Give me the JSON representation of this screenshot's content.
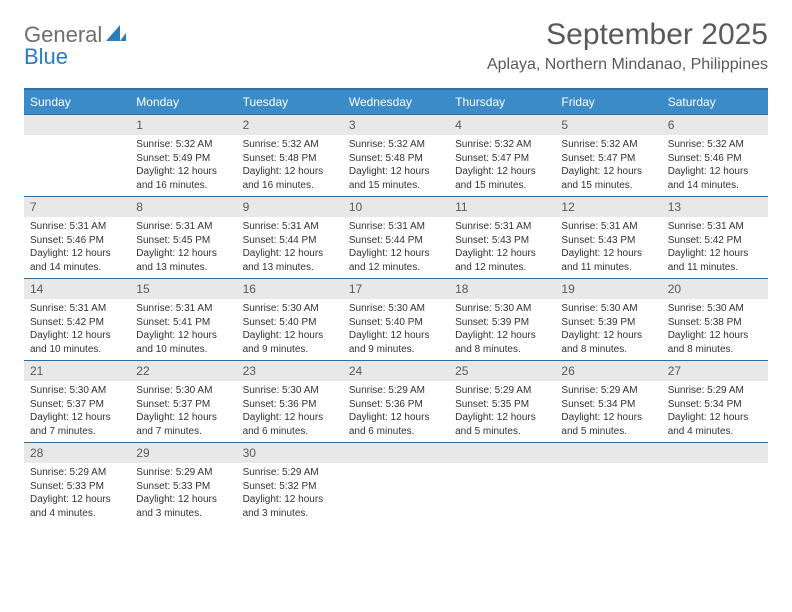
{
  "logo": {
    "text_general": "General",
    "text_blue": "Blue",
    "icon_fill": "#2b7bbf"
  },
  "title": {
    "month": "September 2025",
    "location": "Aplaya, Northern Mindanao, Philippines"
  },
  "colors": {
    "header_bg": "#3b8bc9",
    "header_text": "#ffffff",
    "daynum_bg": "#e8e8e8",
    "daynum_text": "#5a5a5a",
    "body_text": "#333333",
    "border": "#2b6fa3"
  },
  "weekdays": [
    "Sunday",
    "Monday",
    "Tuesday",
    "Wednesday",
    "Thursday",
    "Friday",
    "Saturday"
  ],
  "leading_blanks": 1,
  "days": [
    {
      "n": "1",
      "sunrise": "Sunrise: 5:32 AM",
      "sunset": "Sunset: 5:49 PM",
      "daylight": "Daylight: 12 hours and 16 minutes."
    },
    {
      "n": "2",
      "sunrise": "Sunrise: 5:32 AM",
      "sunset": "Sunset: 5:48 PM",
      "daylight": "Daylight: 12 hours and 16 minutes."
    },
    {
      "n": "3",
      "sunrise": "Sunrise: 5:32 AM",
      "sunset": "Sunset: 5:48 PM",
      "daylight": "Daylight: 12 hours and 15 minutes."
    },
    {
      "n": "4",
      "sunrise": "Sunrise: 5:32 AM",
      "sunset": "Sunset: 5:47 PM",
      "daylight": "Daylight: 12 hours and 15 minutes."
    },
    {
      "n": "5",
      "sunrise": "Sunrise: 5:32 AM",
      "sunset": "Sunset: 5:47 PM",
      "daylight": "Daylight: 12 hours and 15 minutes."
    },
    {
      "n": "6",
      "sunrise": "Sunrise: 5:32 AM",
      "sunset": "Sunset: 5:46 PM",
      "daylight": "Daylight: 12 hours and 14 minutes."
    },
    {
      "n": "7",
      "sunrise": "Sunrise: 5:31 AM",
      "sunset": "Sunset: 5:46 PM",
      "daylight": "Daylight: 12 hours and 14 minutes."
    },
    {
      "n": "8",
      "sunrise": "Sunrise: 5:31 AM",
      "sunset": "Sunset: 5:45 PM",
      "daylight": "Daylight: 12 hours and 13 minutes."
    },
    {
      "n": "9",
      "sunrise": "Sunrise: 5:31 AM",
      "sunset": "Sunset: 5:44 PM",
      "daylight": "Daylight: 12 hours and 13 minutes."
    },
    {
      "n": "10",
      "sunrise": "Sunrise: 5:31 AM",
      "sunset": "Sunset: 5:44 PM",
      "daylight": "Daylight: 12 hours and 12 minutes."
    },
    {
      "n": "11",
      "sunrise": "Sunrise: 5:31 AM",
      "sunset": "Sunset: 5:43 PM",
      "daylight": "Daylight: 12 hours and 12 minutes."
    },
    {
      "n": "12",
      "sunrise": "Sunrise: 5:31 AM",
      "sunset": "Sunset: 5:43 PM",
      "daylight": "Daylight: 12 hours and 11 minutes."
    },
    {
      "n": "13",
      "sunrise": "Sunrise: 5:31 AM",
      "sunset": "Sunset: 5:42 PM",
      "daylight": "Daylight: 12 hours and 11 minutes."
    },
    {
      "n": "14",
      "sunrise": "Sunrise: 5:31 AM",
      "sunset": "Sunset: 5:42 PM",
      "daylight": "Daylight: 12 hours and 10 minutes."
    },
    {
      "n": "15",
      "sunrise": "Sunrise: 5:31 AM",
      "sunset": "Sunset: 5:41 PM",
      "daylight": "Daylight: 12 hours and 10 minutes."
    },
    {
      "n": "16",
      "sunrise": "Sunrise: 5:30 AM",
      "sunset": "Sunset: 5:40 PM",
      "daylight": "Daylight: 12 hours and 9 minutes."
    },
    {
      "n": "17",
      "sunrise": "Sunrise: 5:30 AM",
      "sunset": "Sunset: 5:40 PM",
      "daylight": "Daylight: 12 hours and 9 minutes."
    },
    {
      "n": "18",
      "sunrise": "Sunrise: 5:30 AM",
      "sunset": "Sunset: 5:39 PM",
      "daylight": "Daylight: 12 hours and 8 minutes."
    },
    {
      "n": "19",
      "sunrise": "Sunrise: 5:30 AM",
      "sunset": "Sunset: 5:39 PM",
      "daylight": "Daylight: 12 hours and 8 minutes."
    },
    {
      "n": "20",
      "sunrise": "Sunrise: 5:30 AM",
      "sunset": "Sunset: 5:38 PM",
      "daylight": "Daylight: 12 hours and 8 minutes."
    },
    {
      "n": "21",
      "sunrise": "Sunrise: 5:30 AM",
      "sunset": "Sunset: 5:37 PM",
      "daylight": "Daylight: 12 hours and 7 minutes."
    },
    {
      "n": "22",
      "sunrise": "Sunrise: 5:30 AM",
      "sunset": "Sunset: 5:37 PM",
      "daylight": "Daylight: 12 hours and 7 minutes."
    },
    {
      "n": "23",
      "sunrise": "Sunrise: 5:30 AM",
      "sunset": "Sunset: 5:36 PM",
      "daylight": "Daylight: 12 hours and 6 minutes."
    },
    {
      "n": "24",
      "sunrise": "Sunrise: 5:29 AM",
      "sunset": "Sunset: 5:36 PM",
      "daylight": "Daylight: 12 hours and 6 minutes."
    },
    {
      "n": "25",
      "sunrise": "Sunrise: 5:29 AM",
      "sunset": "Sunset: 5:35 PM",
      "daylight": "Daylight: 12 hours and 5 minutes."
    },
    {
      "n": "26",
      "sunrise": "Sunrise: 5:29 AM",
      "sunset": "Sunset: 5:34 PM",
      "daylight": "Daylight: 12 hours and 5 minutes."
    },
    {
      "n": "27",
      "sunrise": "Sunrise: 5:29 AM",
      "sunset": "Sunset: 5:34 PM",
      "daylight": "Daylight: 12 hours and 4 minutes."
    },
    {
      "n": "28",
      "sunrise": "Sunrise: 5:29 AM",
      "sunset": "Sunset: 5:33 PM",
      "daylight": "Daylight: 12 hours and 4 minutes."
    },
    {
      "n": "29",
      "sunrise": "Sunrise: 5:29 AM",
      "sunset": "Sunset: 5:33 PM",
      "daylight": "Daylight: 12 hours and 3 minutes."
    },
    {
      "n": "30",
      "sunrise": "Sunrise: 5:29 AM",
      "sunset": "Sunset: 5:32 PM",
      "daylight": "Daylight: 12 hours and 3 minutes."
    }
  ]
}
